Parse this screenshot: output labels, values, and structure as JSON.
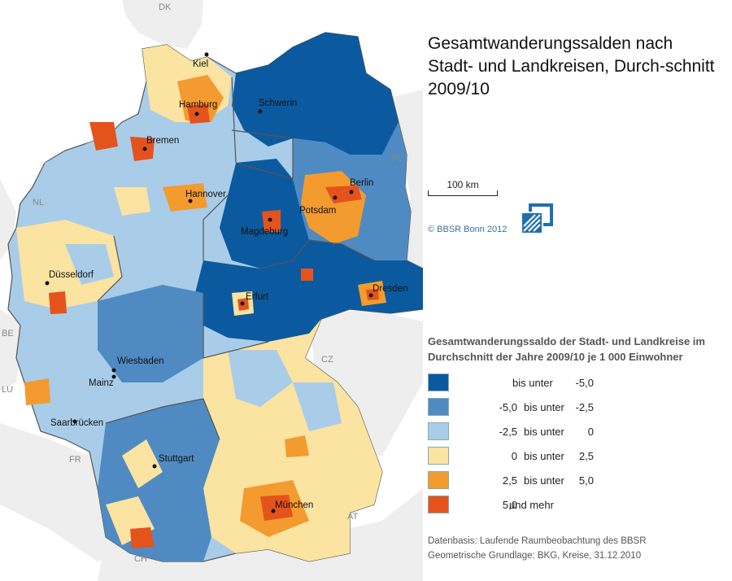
{
  "title": "Gesamtwanderungssalden nach Stadt- und Landkreisen, Durch-schnitt 2009/10",
  "scale_label": "100 km",
  "copyright": "© BBSR Bonn 2012",
  "legend": {
    "title": "Gesamtwanderungssaldo der Stadt- und Landkreise im Durchschnitt der Jahre 2009/10 je 1 000 Einwohner",
    "items": [
      {
        "lo": "",
        "mid": "bis unter",
        "hi": "-5,0",
        "color": "#0b5aa0"
      },
      {
        "lo": "-5,0",
        "mid": "bis unter",
        "hi": "-2,5",
        "color": "#4f8bc2"
      },
      {
        "lo": "-2,5",
        "mid": "bis unter",
        "hi": "0",
        "color": "#a9cde9"
      },
      {
        "lo": "0",
        "mid": "bis unter",
        "hi": "2,5",
        "color": "#fbe3a1"
      },
      {
        "lo": "2,5",
        "mid": "bis unter",
        "hi": "5,0",
        "color": "#f39b2f"
      },
      {
        "lo": "5,0",
        "mid": "und mehr",
        "hi": "",
        "color": "#e5531c"
      }
    ]
  },
  "source": {
    "line1": "Datenbasis: Laufende Raumbeobachtung des BBSR",
    "line2": "Geometrische Grundlage: BKG, Kreise, 31.12.2010"
  },
  "countries": {
    "dk": "DK",
    "pl": "PL",
    "nl": "NL",
    "be": "BE",
    "lu": "LU",
    "fr": "FR",
    "ch": "CH",
    "at": "AT",
    "cz": "CZ"
  },
  "cities": {
    "kiel": "Kiel",
    "hamburg": "Hamburg",
    "schwerin": "Schwerin",
    "bremen": "Bremen",
    "berlin": "Berlin",
    "potsdam": "Potsdam",
    "hannover": "Hannover",
    "magdeburg": "Magdeburg",
    "duesseldorf": "Düsseldorf",
    "erfurt": "Erfurt",
    "dresden": "Dresden",
    "wiesbaden": "Wiesbaden",
    "mainz": "Mainz",
    "saarbruecken": "Saarbrücken",
    "stuttgart": "Stuttgart",
    "muenchen": "München"
  }
}
